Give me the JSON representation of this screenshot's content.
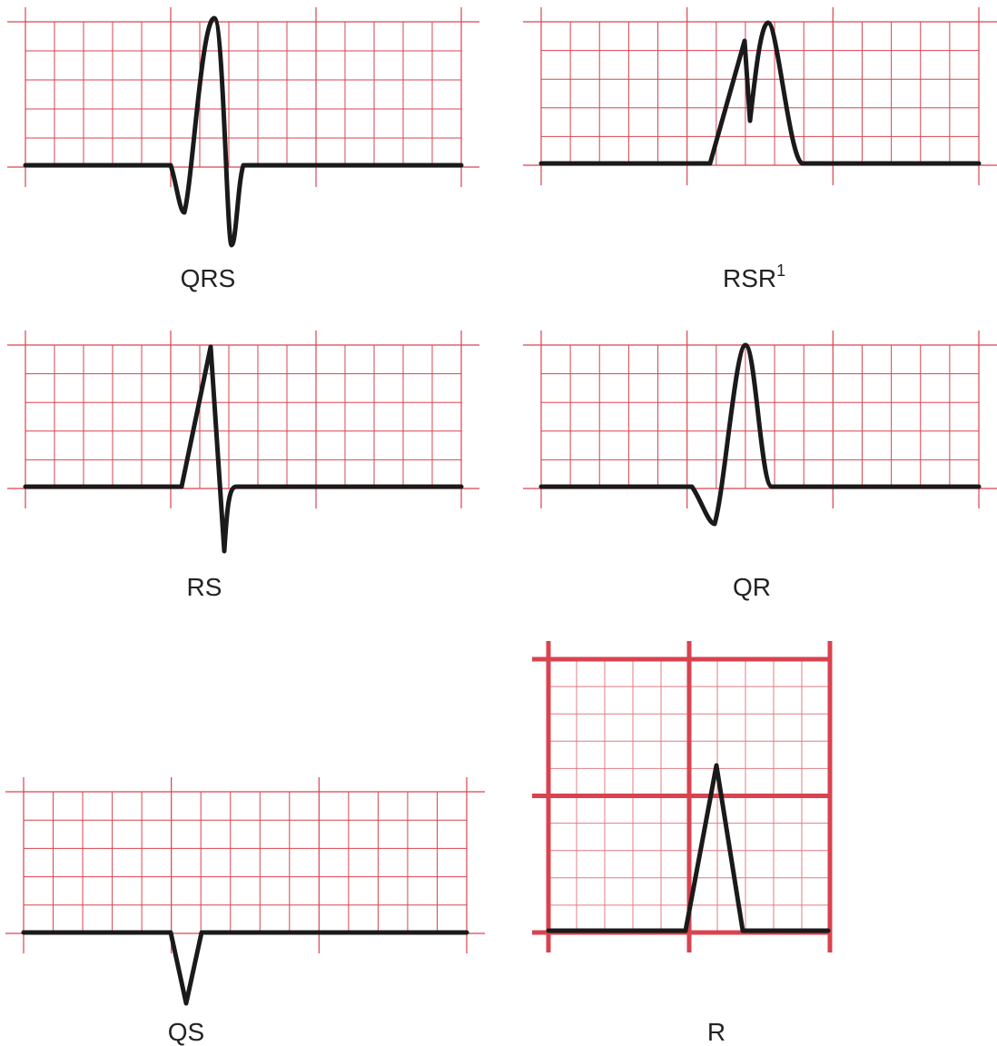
{
  "panels": [
    {
      "label": "QRS"
    },
    {
      "label": "RSR",
      "superscript": "1"
    },
    {
      "label": "RS"
    },
    {
      "label": "QR"
    },
    {
      "label": "QS"
    },
    {
      "label": "R"
    }
  ]
}
